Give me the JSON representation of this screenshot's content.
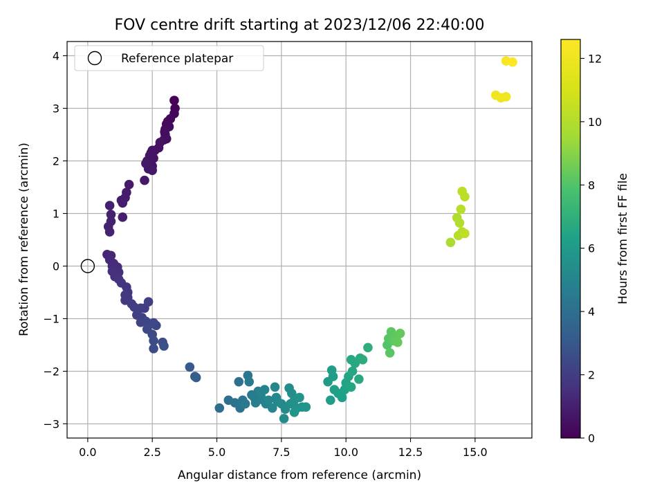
{
  "chart_data": {
    "type": "scatter",
    "title": "FOV centre drift starting at 2023/12/06 22:40:00",
    "xlabel": "Angular distance from reference (arcmin)",
    "ylabel": "Rotation from reference (arcmin)",
    "xlim": [
      -0.8,
      17.2
    ],
    "ylim": [
      -3.27,
      4.27
    ],
    "xticks": [
      0.0,
      2.5,
      5.0,
      7.5,
      10.0,
      12.5,
      15.0
    ],
    "xtick_labels": [
      "0.0",
      "2.5",
      "5.0",
      "7.5",
      "10.0",
      "12.5",
      "15.0"
    ],
    "yticks": [
      -3,
      -2,
      -1,
      0,
      1,
      2,
      3,
      4
    ],
    "ytick_labels": [
      "−3",
      "−2",
      "−1",
      "0",
      "1",
      "2",
      "3",
      "4"
    ],
    "grid": true,
    "legend": {
      "position": "top-left",
      "entries": [
        "Reference platepar"
      ]
    },
    "reference_point": {
      "x": 0,
      "y": 0,
      "label": "Reference platepar"
    },
    "colorbar": {
      "label": "Hours from first FF file",
      "range": [
        0,
        12.6
      ],
      "ticks": [
        0,
        2,
        4,
        6,
        8,
        10,
        12
      ],
      "tick_labels": [
        "0",
        "2",
        "4",
        "6",
        "8",
        "10",
        "12"
      ],
      "colormap": "viridis"
    },
    "points": [
      [
        3.35,
        3.15,
        0.05
      ],
      [
        3.38,
        3.0,
        0.1
      ],
      [
        3.35,
        2.9,
        0.15
      ],
      [
        3.2,
        2.8,
        0.2
      ],
      [
        3.1,
        2.75,
        0.25
      ],
      [
        3.05,
        2.7,
        0.3
      ],
      [
        3.15,
        2.65,
        0.3
      ],
      [
        3.0,
        2.6,
        0.35
      ],
      [
        2.98,
        2.55,
        0.4
      ],
      [
        3.0,
        2.5,
        0.4
      ],
      [
        3.05,
        2.42,
        0.45
      ],
      [
        2.95,
        2.4,
        0.45
      ],
      [
        2.8,
        2.35,
        0.5
      ],
      [
        2.75,
        2.25,
        0.5
      ],
      [
        2.6,
        2.2,
        0.55
      ],
      [
        2.5,
        2.2,
        0.55
      ],
      [
        2.45,
        2.15,
        0.6
      ],
      [
        2.4,
        2.1,
        0.6
      ],
      [
        2.55,
        2.05,
        0.6
      ],
      [
        2.3,
        2.0,
        0.65
      ],
      [
        2.4,
        1.95,
        0.65
      ],
      [
        2.5,
        1.9,
        0.65
      ],
      [
        2.35,
        1.85,
        0.7
      ],
      [
        2.5,
        1.82,
        0.7
      ],
      [
        2.25,
        1.95,
        0.7
      ],
      [
        2.2,
        1.63,
        0.75
      ],
      [
        1.6,
        1.55,
        0.8
      ],
      [
        1.5,
        1.4,
        0.85
      ],
      [
        1.45,
        1.3,
        0.85
      ],
      [
        1.3,
        1.25,
        0.9
      ],
      [
        1.35,
        1.2,
        0.9
      ],
      [
        1.35,
        0.93,
        0.95
      ],
      [
        0.85,
        1.15,
        1.0
      ],
      [
        0.9,
        0.98,
        1.0
      ],
      [
        0.9,
        0.85,
        1.05
      ],
      [
        0.8,
        0.75,
        1.05
      ],
      [
        0.85,
        0.65,
        1.1
      ],
      [
        0.75,
        0.22,
        1.2
      ],
      [
        0.9,
        0.2,
        1.25
      ],
      [
        0.85,
        0.12,
        1.3
      ],
      [
        1.0,
        0.05,
        1.35
      ],
      [
        0.95,
        0.0,
        1.35
      ],
      [
        1.15,
        -0.02,
        1.4
      ],
      [
        1.05,
        -0.08,
        1.45
      ],
      [
        1.2,
        -0.12,
        1.5
      ],
      [
        0.95,
        -0.1,
        1.5
      ],
      [
        1.05,
        -0.2,
        1.55
      ],
      [
        1.2,
        -0.25,
        1.6
      ],
      [
        1.3,
        -0.32,
        1.65
      ],
      [
        1.5,
        -0.4,
        1.7
      ],
      [
        1.55,
        -0.5,
        1.75
      ],
      [
        1.45,
        -0.55,
        1.8
      ],
      [
        1.55,
        -0.6,
        1.8
      ],
      [
        1.45,
        -0.65,
        1.85
      ],
      [
        1.7,
        -0.72,
        1.9
      ],
      [
        1.8,
        -0.78,
        1.95
      ],
      [
        2.05,
        -0.8,
        2.0
      ],
      [
        2.2,
        -0.8,
        2.0
      ],
      [
        2.35,
        -0.68,
        2.05
      ],
      [
        1.9,
        -0.93,
        2.1
      ],
      [
        2.1,
        -0.98,
        2.15
      ],
      [
        2.05,
        -1.07,
        2.2
      ],
      [
        2.25,
        -1.05,
        2.25
      ],
      [
        2.4,
        -1.1,
        2.3
      ],
      [
        2.55,
        -1.08,
        2.35
      ],
      [
        2.65,
        -1.13,
        2.35
      ],
      [
        2.3,
        -1.2,
        2.4
      ],
      [
        2.5,
        -1.3,
        2.45
      ],
      [
        2.55,
        -1.42,
        2.5
      ],
      [
        2.55,
        -1.57,
        2.55
      ],
      [
        2.9,
        -1.45,
        2.6
      ],
      [
        2.95,
        -1.52,
        2.65
      ],
      [
        3.95,
        -1.92,
        3.1
      ],
      [
        4.15,
        -2.1,
        3.2
      ],
      [
        4.2,
        -2.12,
        3.25
      ],
      [
        5.1,
        -2.7,
        3.9
      ],
      [
        5.45,
        -2.55,
        4.0
      ],
      [
        5.85,
        -2.2,
        4.1
      ],
      [
        5.7,
        -2.6,
        4.2
      ],
      [
        5.9,
        -2.7,
        4.25
      ],
      [
        6.0,
        -2.55,
        4.3
      ],
      [
        6.2,
        -2.08,
        4.35
      ],
      [
        6.25,
        -2.2,
        4.4
      ],
      [
        6.1,
        -2.62,
        4.45
      ],
      [
        6.35,
        -2.45,
        4.5
      ],
      [
        6.45,
        -2.5,
        4.55
      ],
      [
        6.5,
        -2.6,
        4.6
      ],
      [
        6.6,
        -2.38,
        4.65
      ],
      [
        6.7,
        -2.45,
        4.7
      ],
      [
        6.8,
        -2.55,
        4.75
      ],
      [
        6.9,
        -2.62,
        4.8
      ],
      [
        6.7,
        -2.4,
        4.85
      ],
      [
        6.85,
        -2.35,
        4.9
      ],
      [
        7.0,
        -2.55,
        4.95
      ],
      [
        7.15,
        -2.7,
        5.0
      ],
      [
        7.3,
        -2.5,
        5.05
      ],
      [
        7.25,
        -2.3,
        5.1
      ],
      [
        7.35,
        -2.58,
        5.15
      ],
      [
        7.5,
        -2.62,
        5.2
      ],
      [
        7.65,
        -2.72,
        5.25
      ],
      [
        7.6,
        -2.9,
        5.3
      ],
      [
        7.8,
        -2.32,
        5.35
      ],
      [
        7.9,
        -2.42,
        5.4
      ],
      [
        7.85,
        -2.62,
        5.45
      ],
      [
        8.0,
        -2.55,
        5.5
      ],
      [
        8.1,
        -2.7,
        5.55
      ],
      [
        8.2,
        -2.5,
        5.6
      ],
      [
        8.3,
        -2.68,
        5.65
      ],
      [
        8.45,
        -2.68,
        5.7
      ],
      [
        8.0,
        -2.78,
        5.7
      ],
      [
        9.3,
        -2.2,
        6.0
      ],
      [
        9.4,
        -2.55,
        6.05
      ],
      [
        9.5,
        -2.1,
        6.1
      ],
      [
        9.45,
        -1.98,
        6.15
      ],
      [
        9.55,
        -2.35,
        6.2
      ],
      [
        9.7,
        -2.42,
        6.25
      ],
      [
        9.85,
        -2.5,
        6.3
      ],
      [
        9.95,
        -2.35,
        6.35
      ],
      [
        10.0,
        -2.22,
        6.4
      ],
      [
        10.1,
        -2.1,
        6.45
      ],
      [
        10.2,
        -2.3,
        6.5
      ],
      [
        10.25,
        -2.0,
        6.55
      ],
      [
        10.2,
        -1.78,
        6.6
      ],
      [
        10.35,
        -1.85,
        6.65
      ],
      [
        10.5,
        -2.15,
        6.7
      ],
      [
        10.55,
        -1.75,
        6.75
      ],
      [
        10.65,
        -1.78,
        6.8
      ],
      [
        10.85,
        -1.55,
        6.9
      ],
      [
        11.6,
        -1.5,
        8.0
      ],
      [
        11.65,
        -1.38,
        8.1
      ],
      [
        11.7,
        -1.65,
        8.15
      ],
      [
        11.75,
        -1.25,
        8.2
      ],
      [
        11.85,
        -1.42,
        8.25
      ],
      [
        11.95,
        -1.35,
        8.3
      ],
      [
        12.1,
        -1.28,
        8.35
      ],
      [
        12.0,
        -1.45,
        8.4
      ],
      [
        14.05,
        0.45,
        9.8
      ],
      [
        14.3,
        0.92,
        9.9
      ],
      [
        14.4,
        0.82,
        10.0
      ],
      [
        14.35,
        0.58,
        10.05
      ],
      [
        14.5,
        0.65,
        10.1
      ],
      [
        14.45,
        1.08,
        10.15
      ],
      [
        14.5,
        1.42,
        10.2
      ],
      [
        14.6,
        1.32,
        10.25
      ],
      [
        14.6,
        0.62,
        10.3
      ],
      [
        15.8,
        3.25,
        12.0
      ],
      [
        16.0,
        3.2,
        12.05
      ],
      [
        16.2,
        3.22,
        12.1
      ],
      [
        16.2,
        3.9,
        12.4
      ],
      [
        16.45,
        3.88,
        12.5
      ]
    ]
  }
}
